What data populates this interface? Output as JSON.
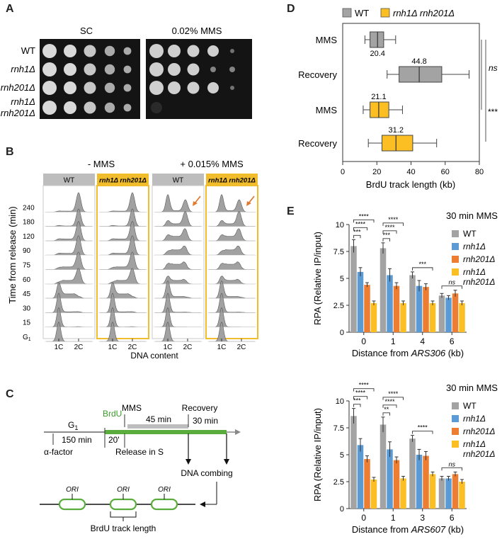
{
  "panels": {
    "a": "A",
    "b": "B",
    "c": "C",
    "d": "D",
    "e": "E"
  },
  "panel_a": {
    "col_sc": "SC",
    "col_mms": "0.02% MMS",
    "rows": [
      "WT",
      "rnh1Δ",
      "rnh201Δ",
      "rnh1Δ",
      "rnh201Δ"
    ]
  },
  "panel_b": {
    "cond_minus": "- MMS",
    "cond_plus": "+ 0.015% MMS",
    "strain_wt": "WT",
    "strain_mut": "rnh1Δ rnh201Δ",
    "ylabel": "Time from release (min)",
    "times": [
      "240",
      "180",
      "120",
      "90",
      "75",
      "60",
      "45",
      "30",
      "15",
      "G"
    ],
    "g_sub": "1",
    "x1c": "1C",
    "x2c": "2C",
    "xlabel": "DNA content"
  },
  "panel_c": {
    "g1": "G",
    "g1_sub": "1",
    "brdu": "BrdU",
    "mms": "MMS",
    "min45": "45 min",
    "recovery": "Recovery",
    "min150": "150 min",
    "min20": "20'",
    "min30": "30 min",
    "alpha": "α-factor",
    "release": "Release in S",
    "combing": "DNA combing",
    "ori": "ORI",
    "track": "BrdU track length"
  },
  "colors": {
    "wt": "#a3a3a3",
    "rnh1": "#5b9bd5",
    "rnh201": "#ed7d31",
    "double": "#fbbf24",
    "green": "#5aad3c",
    "strain_box": "#f2bd2c"
  },
  "chart_data": [
    {
      "type": "box",
      "legend": [
        "WT",
        "rnh1Δ rnh201Δ"
      ],
      "categories": [
        "MMS",
        "Recovery",
        "MMS",
        "Recovery"
      ],
      "series_group": [
        "WT",
        "WT",
        "rnh1Δ rnh201Δ",
        "rnh1Δ rnh201Δ"
      ],
      "median_labels": [
        "20.4",
        "44.8",
        "21.1",
        "31.2"
      ],
      "boxes": [
        {
          "whisker_low": 13,
          "q1": 16,
          "median": 20.4,
          "q3": 24,
          "whisker_high": 31
        },
        {
          "whisker_low": 26,
          "q1": 33,
          "median": 44.8,
          "q3": 58,
          "whisker_high": 74
        },
        {
          "whisker_low": 12,
          "q1": 16,
          "median": 21.1,
          "q3": 27,
          "whisker_high": 35
        },
        {
          "whisker_low": 15,
          "q1": 23,
          "median": 31.2,
          "q3": 41,
          "whisker_high": 55
        }
      ],
      "xlabel": "BrdU track length (kb)",
      "xlim": [
        0,
        80
      ],
      "xticks": [
        "0",
        "20",
        "40",
        "60",
        "80"
      ],
      "annotations": [
        "ns",
        "***"
      ]
    },
    {
      "type": "bar",
      "title": "30 min MMS",
      "legend": [
        "WT",
        "rnh1Δ",
        "rnh201Δ",
        "rnh1Δ",
        "rnh201Δ"
      ],
      "categories": [
        "0",
        "1",
        "4",
        "6"
      ],
      "series": [
        {
          "name": "WT",
          "values": [
            8.0,
            7.8,
            5.3,
            3.4
          ],
          "errors": [
            0.6,
            0.5,
            0.3,
            0.2
          ]
        },
        {
          "name": "rnh1Δ",
          "values": [
            5.6,
            5.3,
            4.3,
            3.2
          ],
          "errors": [
            0.4,
            0.6,
            0.5,
            0.2
          ]
        },
        {
          "name": "rnh201Δ",
          "values": [
            4.4,
            4.3,
            4.2,
            3.6
          ],
          "errors": [
            0.2,
            0.3,
            0.3,
            0.3
          ]
        },
        {
          "name": "rnh1Δ rnh201Δ",
          "values": [
            2.7,
            2.7,
            2.7,
            2.7
          ],
          "errors": [
            0.2,
            0.2,
            0.2,
            0.2
          ]
        }
      ],
      "ylabel": "RPA  (Relative IP/input)",
      "xlabel_pre": "Distance from ",
      "xlabel_it": "ARS306",
      "xlabel_post": " (kb)",
      "ylim": [
        0,
        10
      ],
      "yticks": [
        "0",
        "2.5",
        "5",
        "7.5",
        "10"
      ],
      "sig": [
        "****",
        "****",
        "***",
        "****",
        "****",
        "***",
        "***",
        "ns"
      ]
    },
    {
      "type": "bar",
      "title": "30 min MMS",
      "legend": [
        "WT",
        "rnh1Δ",
        "rnh201Δ",
        "rnh1Δ",
        "rnh201Δ"
      ],
      "categories": [
        "0",
        "1",
        "3",
        "6"
      ],
      "series": [
        {
          "name": "WT",
          "values": [
            8.6,
            7.8,
            6.5,
            2.8
          ],
          "errors": [
            0.7,
            0.7,
            0.3,
            0.2
          ]
        },
        {
          "name": "rnh1Δ",
          "values": [
            5.9,
            5.5,
            5.0,
            2.8
          ],
          "errors": [
            0.6,
            0.7,
            0.5,
            0.2
          ]
        },
        {
          "name": "rnh201Δ",
          "values": [
            4.6,
            4.5,
            4.9,
            3.2
          ],
          "errors": [
            0.3,
            0.3,
            0.4,
            0.2
          ]
        },
        {
          "name": "rnh1Δ rnh201Δ",
          "values": [
            2.7,
            2.8,
            3.2,
            2.5
          ],
          "errors": [
            0.2,
            0.2,
            0.2,
            0.2
          ]
        }
      ],
      "ylabel": "RPA  (Relative IP/input)",
      "xlabel_pre": "Distance from ",
      "xlabel_it": "ARS607",
      "xlabel_post": " (kb)",
      "ylim": [
        0,
        10
      ],
      "yticks": [
        "0",
        "2.5",
        "5",
        "7.5",
        "10"
      ],
      "sig": [
        "****",
        "****",
        "***",
        "****",
        "****",
        "**",
        "****",
        "ns"
      ]
    }
  ]
}
